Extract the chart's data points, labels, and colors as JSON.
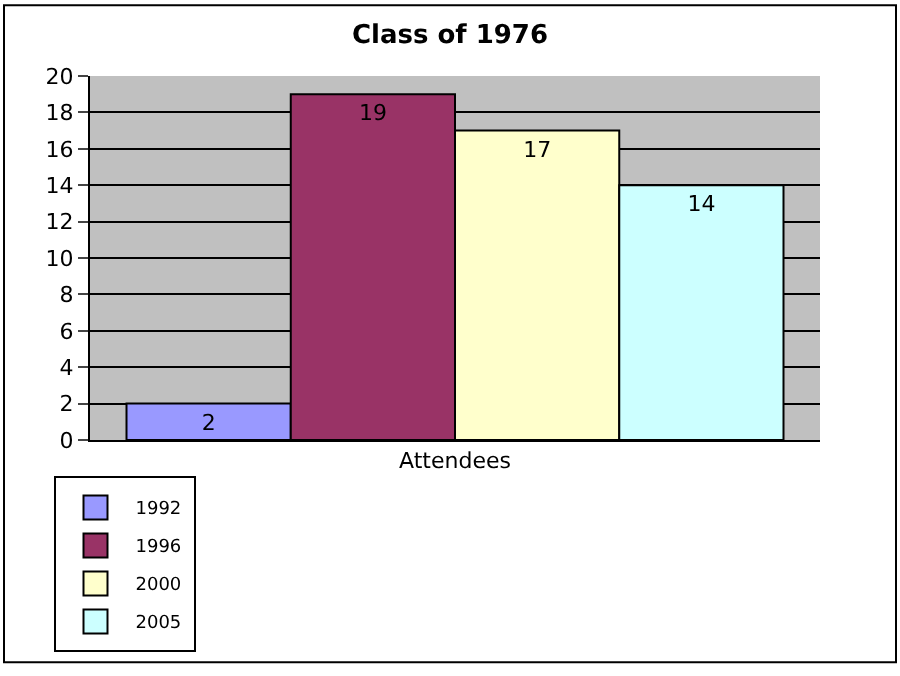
{
  "chart_data": {
    "type": "bar",
    "title": "Class of 1976",
    "categories": [
      "Attendees"
    ],
    "series": [
      {
        "name": "1992",
        "color": "#9999ff",
        "values": [
          2
        ]
      },
      {
        "name": "1996",
        "color": "#993366",
        "values": [
          19
        ]
      },
      {
        "name": "2000",
        "color": "#ffffcc",
        "values": [
          17
        ]
      },
      {
        "name": "2005",
        "color": "#ccffff",
        "values": [
          14
        ]
      }
    ],
    "ylim": [
      0,
      20
    ],
    "yticks": [
      0,
      2,
      4,
      6,
      8,
      10,
      12,
      14,
      16,
      18,
      20
    ],
    "grid": "y",
    "legend": "bottom left",
    "data_labels": true
  }
}
